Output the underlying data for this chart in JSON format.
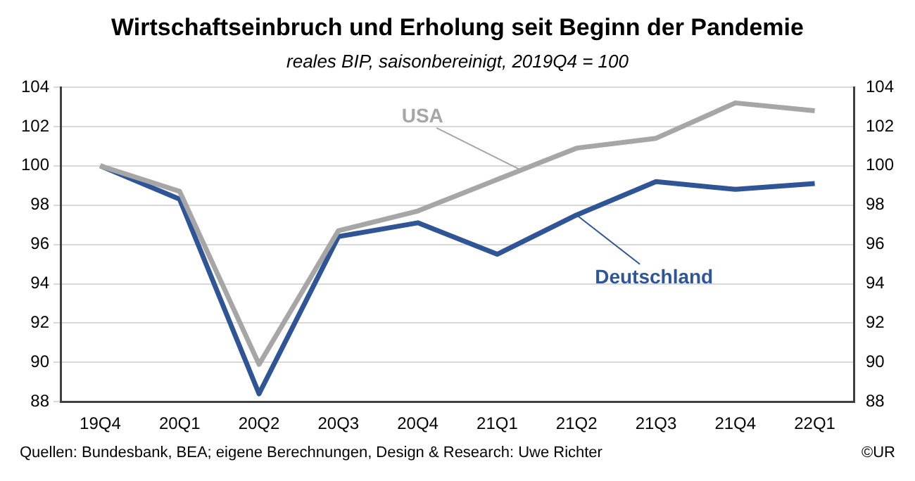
{
  "chart_data": {
    "type": "line",
    "title": "Wirtschaftseinbruch und Erholung seit Beginn der Pandemie",
    "subtitle": "reales BIP, saisonbereinigt, 2019Q4 = 100",
    "categories": [
      "19Q4",
      "20Q1",
      "20Q2",
      "20Q3",
      "20Q4",
      "21Q1",
      "21Q2",
      "21Q3",
      "21Q4",
      "22Q1"
    ],
    "series": [
      {
        "name": "USA",
        "color": "#a6a6a6",
        "values": [
          100,
          98.7,
          89.9,
          96.7,
          97.7,
          99.3,
          100.9,
          101.4,
          103.2,
          102.8
        ]
      },
      {
        "name": "Deutschland",
        "color": "#2f5597",
        "values": [
          100,
          98.3,
          88.4,
          96.4,
          97.1,
          95.5,
          97.5,
          99.2,
          98.8,
          99.1
        ]
      }
    ],
    "ylim": [
      88,
      104
    ],
    "yticks": [
      88,
      90,
      92,
      94,
      96,
      98,
      100,
      102,
      104
    ],
    "y2lim": [
      88,
      104
    ],
    "y2ticks": [
      88,
      90,
      92,
      94,
      96,
      98,
      100,
      102,
      104
    ],
    "grid": "y",
    "legend": false,
    "marker": "none",
    "line_style": "solid",
    "annotations": [
      "Quellen: Bundesbank, BEA; eigene Berechnungen, Design & Research: Uwe Richter",
      "©UR"
    ]
  }
}
